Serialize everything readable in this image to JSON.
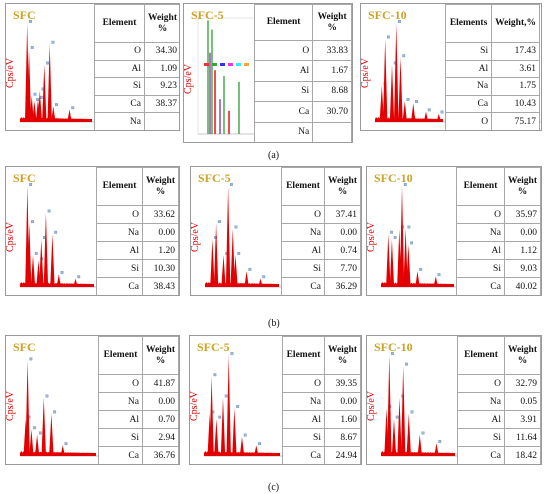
{
  "captions": [
    "(a)",
    "(b)",
    "(c)"
  ],
  "ylabel": "Cps/eV",
  "colors": {
    "spectrum": "#e40000",
    "sample_label": "#c9a227",
    "ylabel": "#e00000",
    "green_bars": "#3aa63a",
    "purple_bars": "#8a3ab0"
  },
  "chart_data": [
    {
      "type": "table",
      "sample": "SFC",
      "row": "a",
      "col_element": "Element",
      "col_weight": "Weight %",
      "rows": [
        [
          "O",
          "34.30"
        ],
        [
          "Al",
          "1.09"
        ],
        [
          "Si",
          "9.23"
        ],
        [
          "Ca",
          "38.37"
        ],
        [
          "Na",
          ""
        ]
      ]
    },
    {
      "type": "table",
      "sample": "SFC-5",
      "row": "a",
      "col_element": "Element",
      "col_weight": "Weight %",
      "rows": [
        [
          "O",
          "33.83"
        ],
        [
          "Al",
          "1.67"
        ],
        [
          "Si",
          "8.68"
        ],
        [
          "Ca",
          "30.70"
        ],
        [
          "Na",
          ""
        ]
      ]
    },
    {
      "type": "table",
      "sample": "SFC-10",
      "row": "a",
      "col_element": "Elements",
      "col_weight": "Weight,%",
      "rows": [
        [
          "Si",
          "17.43"
        ],
        [
          "Al",
          "3.61"
        ],
        [
          "Na",
          "1.75"
        ],
        [
          "Ca",
          "10.43"
        ],
        [
          "O",
          "75.17"
        ]
      ]
    },
    {
      "type": "table",
      "sample": "SFC",
      "row": "b",
      "col_element": "Element",
      "col_weight": "Weight %",
      "rows": [
        [
          "O",
          "33.62"
        ],
        [
          "Na",
          "0.00"
        ],
        [
          "Al",
          "1.20"
        ],
        [
          "Si",
          "10.30"
        ],
        [
          "Ca",
          "38.43"
        ]
      ]
    },
    {
      "type": "table",
      "sample": "SFC-5",
      "row": "b",
      "col_element": "Element",
      "col_weight": "Weight %",
      "rows": [
        [
          "O",
          "37.41"
        ],
        [
          "Na",
          "0.00"
        ],
        [
          "Al",
          "0.74"
        ],
        [
          "Si",
          "7.70"
        ],
        [
          "Ca",
          "36.29"
        ]
      ]
    },
    {
      "type": "table",
      "sample": "SFC-10",
      "row": "b",
      "col_element": "Element",
      "col_weight": "Weight %",
      "rows": [
        [
          "O",
          "35.97"
        ],
        [
          "Na",
          "0.00"
        ],
        [
          "Al",
          "1.12"
        ],
        [
          "Si",
          "9.03"
        ],
        [
          "Ca",
          "40.02"
        ]
      ]
    },
    {
      "type": "table",
      "sample": "SFC",
      "row": "c",
      "col_element": "Element",
      "col_weight": "Weight %",
      "rows": [
        [
          "O",
          "41.87"
        ],
        [
          "Na",
          "0.00"
        ],
        [
          "Al",
          "0.70"
        ],
        [
          "Si",
          "2.94"
        ],
        [
          "Ca",
          "36.76"
        ]
      ]
    },
    {
      "type": "table",
      "sample": "SFC-5",
      "row": "c",
      "col_element": "Element",
      "col_weight": "Weight %",
      "rows": [
        [
          "O",
          "39.35"
        ],
        [
          "Na",
          "0.00"
        ],
        [
          "Al",
          "1.60"
        ],
        [
          "Si",
          "8.67"
        ],
        [
          "Ca",
          "24.94"
        ]
      ]
    },
    {
      "type": "table",
      "sample": "SFC-10",
      "row": "c",
      "col_element": "Element",
      "col_weight": "Weight %",
      "rows": [
        [
          "O",
          "32.79"
        ],
        [
          "Na",
          "0.05"
        ],
        [
          "Al",
          "3.91"
        ],
        [
          "Si",
          "11.64"
        ],
        [
          "Ca",
          "18.42"
        ]
      ]
    }
  ]
}
